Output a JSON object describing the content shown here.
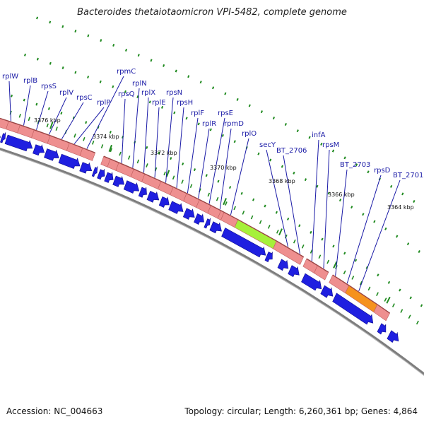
{
  "header": {
    "title": "Bacteroides thetaiotaomicron VPI-5482, complete genome"
  },
  "footer": {
    "accession": "Accession: NC_004663",
    "summary": "Topology: circular; Length: 6,260,361 bp; Genes: 4,864"
  },
  "colors": {
    "cds_arrow": "#1f1fe0",
    "gene_block": "#ee8f8f",
    "highlight_green": "#a6f03a",
    "highlight_orange": "#f5921e",
    "backbone": "#7d7d7d",
    "tick": "#1f8a1f",
    "label": "#1a1aa6"
  },
  "genes": [
    {
      "label": "rplW"
    },
    {
      "label": "rplB"
    },
    {
      "label": "rpsS"
    },
    {
      "label": "rplV"
    },
    {
      "label": "rpsC"
    },
    {
      "label": "rplP"
    },
    {
      "label": "rpmC"
    },
    {
      "label": "rpsQ"
    },
    {
      "label": "rplN"
    },
    {
      "label": "rplX"
    },
    {
      "label": "rplE"
    },
    {
      "label": "rpsN"
    },
    {
      "label": "rpsH"
    },
    {
      "label": "rplF"
    },
    {
      "label": "rplR"
    },
    {
      "label": "rpsE"
    },
    {
      "label": "rpmD"
    },
    {
      "label": "rplO"
    },
    {
      "label": "secY"
    },
    {
      "label": "BT_2706"
    },
    {
      "label": "infA"
    },
    {
      "label": "rpsM"
    },
    {
      "label": "BT_2703"
    },
    {
      "label": "rpsD"
    },
    {
      "label": "BT_2701"
    }
  ],
  "scale_labels": [
    "3376 kbp",
    "3374 kbp",
    "3372 kbp",
    "3370 kbp",
    "3368 kbp",
    "3366 kbp",
    "3364 kbp"
  ]
}
